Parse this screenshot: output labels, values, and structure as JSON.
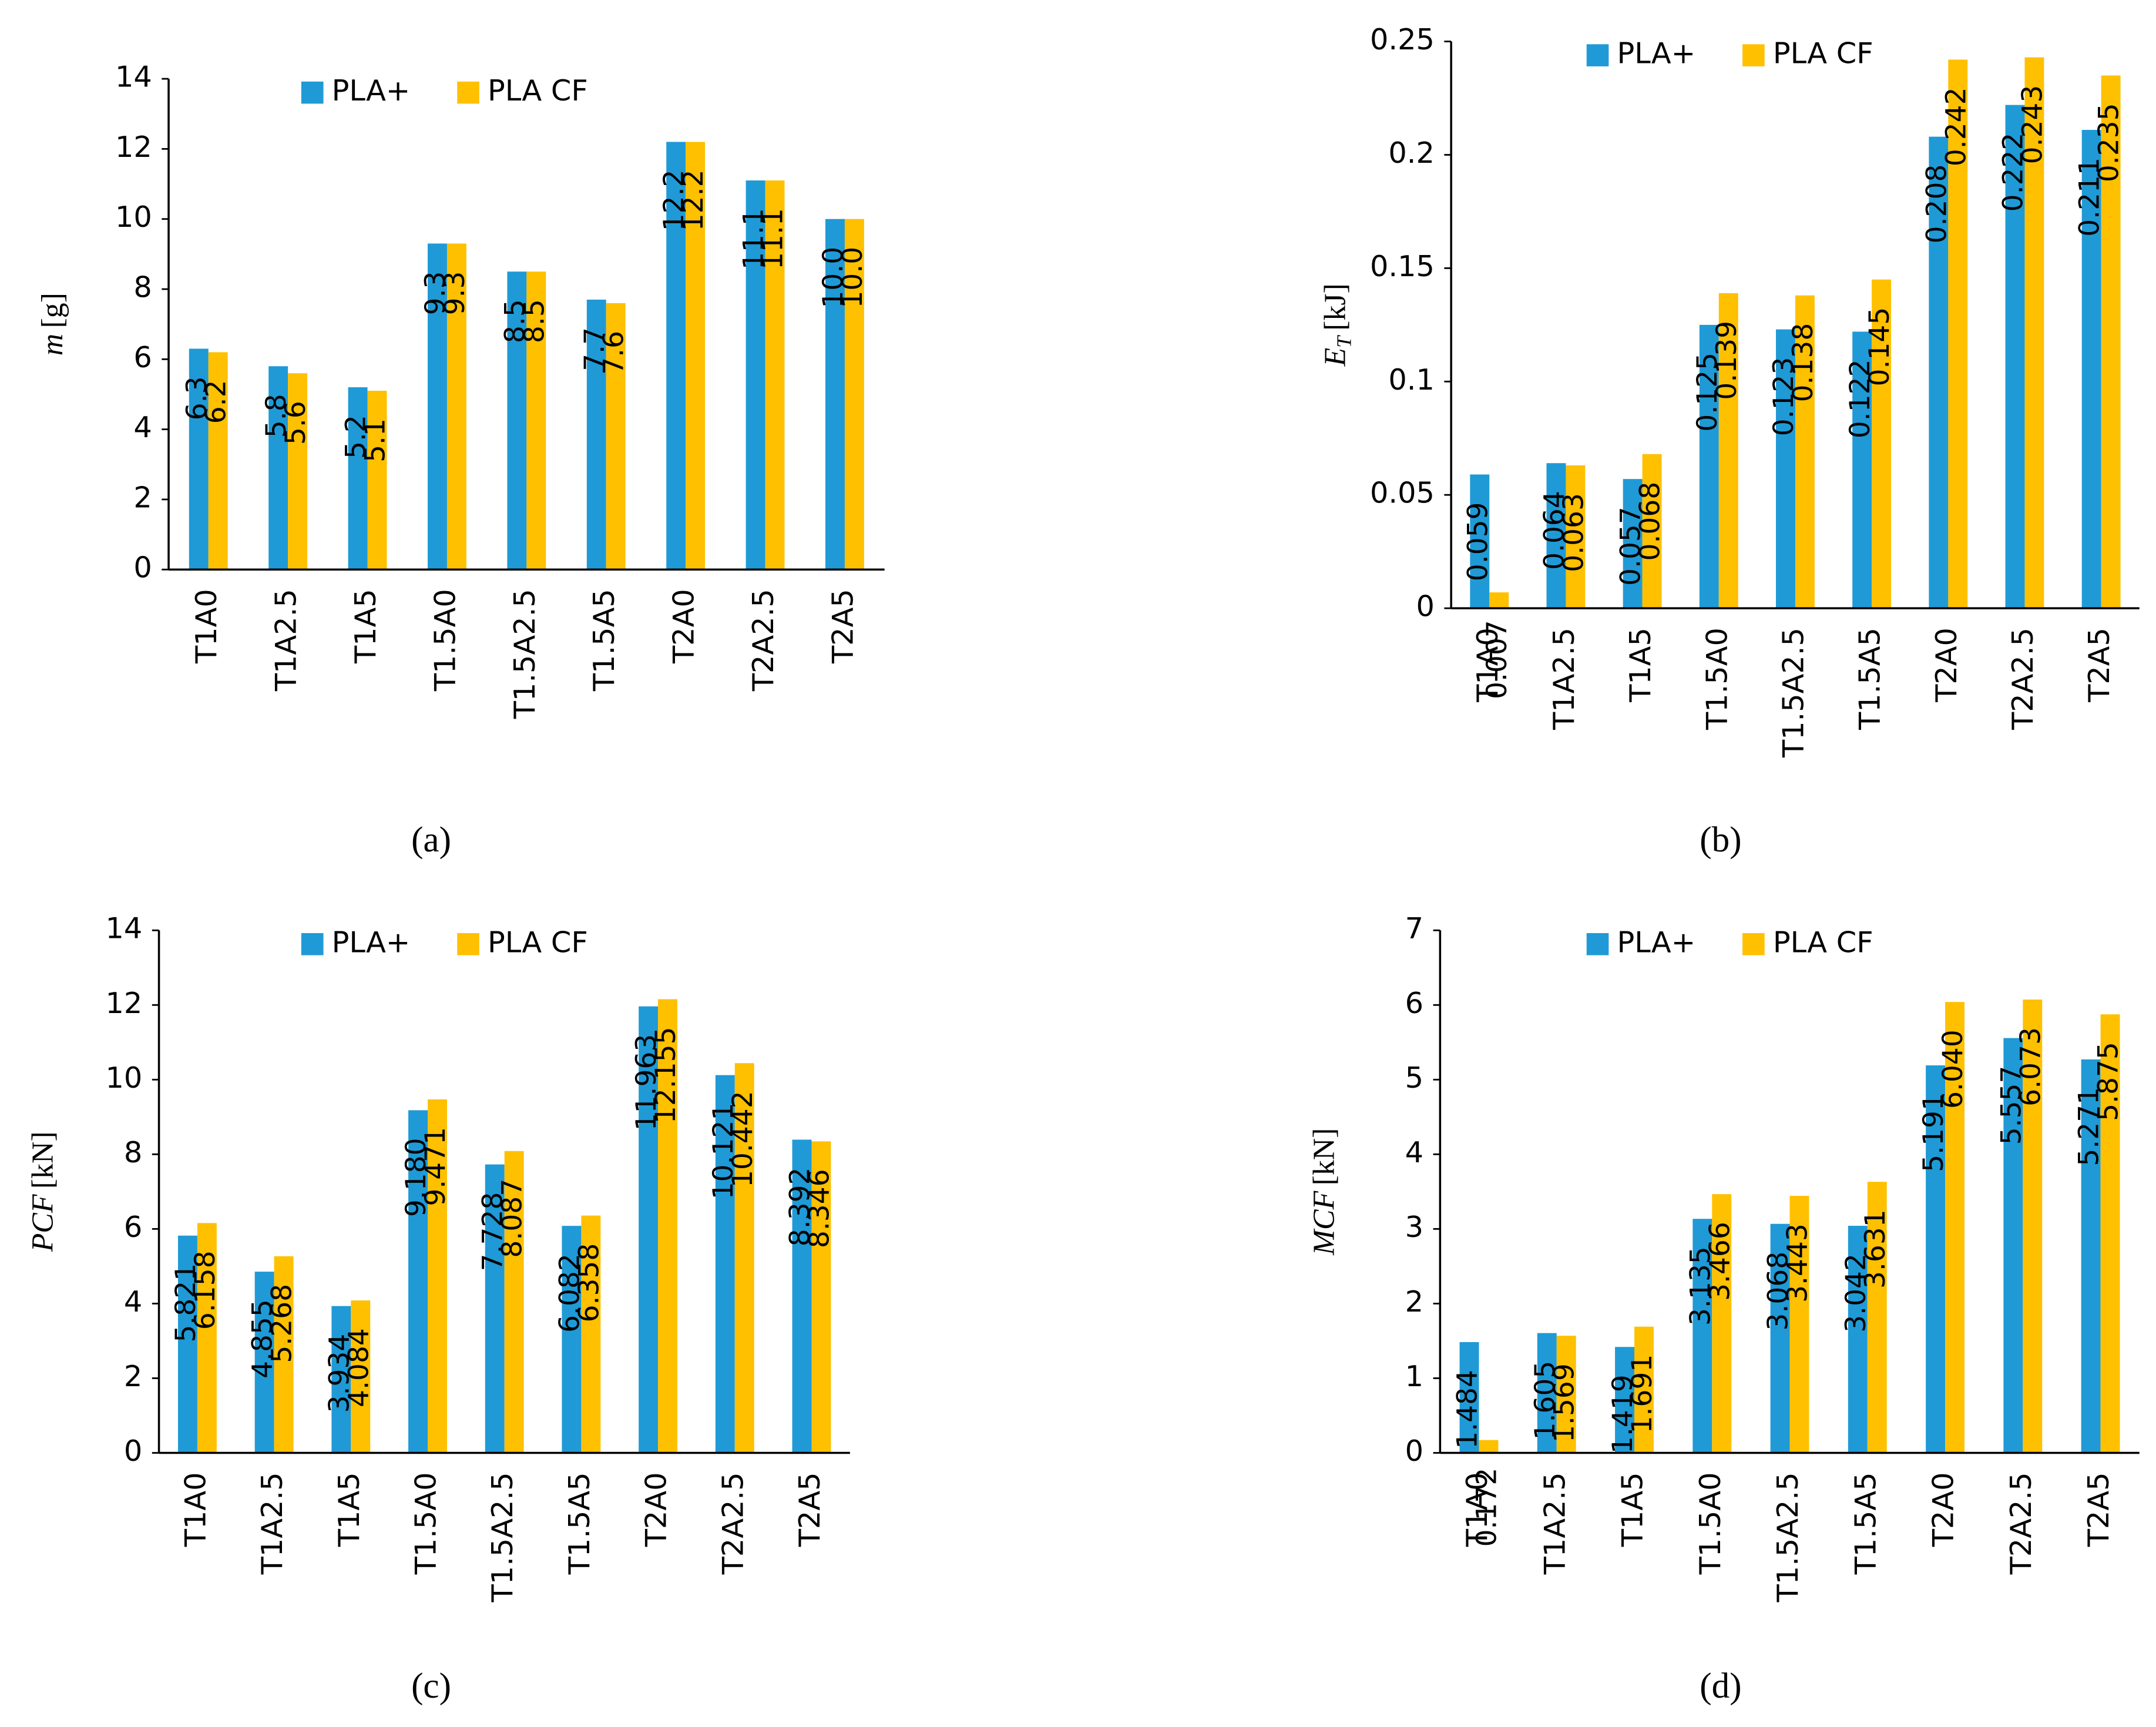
{
  "chart_data": [
    {
      "type": "bar",
      "caption": "(a)",
      "y_label": {
        "symbol": "m",
        "unit": "[g]"
      },
      "categories": [
        "T1A0",
        "T1A2.5",
        "T1A5",
        "T1.5A0",
        "T1.5A2.5",
        "T1.5A5",
        "T2A0",
        "T2A2.5",
        "T2A5"
      ],
      "series": [
        {
          "name": "PLA+",
          "color": "#1f9ad6",
          "values": [
            6.3,
            5.8,
            5.2,
            9.3,
            8.5,
            7.7,
            12.2,
            11.1,
            10.0
          ],
          "value_labels": [
            "6.3",
            "5.8",
            "5.2",
            "9.3",
            "8.5",
            "7.7",
            "12.2",
            "11.1",
            "10.0"
          ]
        },
        {
          "name": "PLA CF",
          "color": "#ffc000",
          "values": [
            6.2,
            5.6,
            5.1,
            9.3,
            8.5,
            7.6,
            12.2,
            11.1,
            10.0
          ],
          "value_labels": [
            "6.2",
            "5.6",
            "5.1",
            "9.3",
            "8.5",
            "7.6",
            "12.2",
            "11.1",
            "10.0"
          ]
        }
      ],
      "ylim": [
        0,
        14
      ],
      "yticks": [
        0,
        2,
        4,
        6,
        8,
        10,
        12,
        14
      ]
    },
    {
      "type": "bar",
      "caption": "(b)",
      "y_label": {
        "symbol": "E",
        "subscript": "T",
        "unit": "[kJ]"
      },
      "categories": [
        "T1A0",
        "T1A2.5",
        "T1A5",
        "T1.5A0",
        "T1.5A2.5",
        "T1.5A5",
        "T2A0",
        "T2A2.5",
        "T2A5"
      ],
      "series": [
        {
          "name": "PLA+",
          "color": "#1f9ad6",
          "values": [
            0.059,
            0.064,
            0.057,
            0.125,
            0.123,
            0.122,
            0.208,
            0.222,
            0.211
          ]
        },
        {
          "name": "PLA CF",
          "color": "#ffc000",
          "values": [
            0.007,
            0.063,
            0.068,
            0.139,
            0.138,
            0.145,
            0.242,
            0.243,
            0.235
          ]
        }
      ],
      "ylim": [
        0,
        0.25
      ],
      "yticks": [
        0,
        0.05,
        0.1,
        0.15,
        0.2,
        0.25
      ]
    },
    {
      "type": "bar",
      "caption": "(c)",
      "y_label": {
        "symbol": "PCF",
        "unit": "[kN]"
      },
      "categories": [
        "T1A0",
        "T1A2.5",
        "T1A5",
        "T1.5A0",
        "T1.5A2.5",
        "T1.5A5",
        "T2A0",
        "T2A2.5",
        "T2A5"
      ],
      "series": [
        {
          "name": "PLA+",
          "color": "#1f9ad6",
          "values": [
            5.821,
            4.855,
            3.934,
            9.18,
            7.728,
            6.082,
            11.963,
            10.121,
            8.392
          ],
          "value_labels": [
            "5.821",
            "4.855",
            "3.934",
            "9.180",
            "7.728",
            "6.082",
            "11.963",
            "10.121",
            "8.392"
          ]
        },
        {
          "name": "PLA CF",
          "color": "#ffc000",
          "values": [
            6.158,
            5.268,
            4.084,
            9.471,
            8.087,
            6.358,
            12.155,
            10.442,
            8.346
          ]
        }
      ],
      "ylim": [
        0,
        14
      ],
      "yticks": [
        0,
        2,
        4,
        6,
        8,
        10,
        12,
        14
      ]
    },
    {
      "type": "bar",
      "caption": "(d)",
      "y_label": {
        "symbol": "MCF",
        "unit": "[kN]"
      },
      "categories": [
        "T1A0",
        "T1A2.5",
        "T1A5",
        "T1.5A0",
        "T1.5A2.5",
        "T1.5A5",
        "T2A0",
        "T2A2.5",
        "T2A5"
      ],
      "series": [
        {
          "name": "PLA+",
          "color": "#1f9ad6",
          "values": [
            1.484,
            1.605,
            1.419,
            3.135,
            3.068,
            3.042,
            5.191,
            5.557,
            5.271
          ]
        },
        {
          "name": "PLA CF",
          "color": "#ffc000",
          "values": [
            0.172,
            1.569,
            1.691,
            3.466,
            3.443,
            3.631,
            6.04,
            6.073,
            5.875
          ],
          "value_labels": [
            "0.172",
            "1.569",
            "1.691",
            "3.466",
            "3.443",
            "3.631",
            "6.040",
            "6.073",
            "5.875"
          ]
        }
      ],
      "ylim": [
        0,
        7
      ],
      "yticks": [
        0,
        1,
        2,
        3,
        4,
        5,
        6,
        7
      ]
    }
  ]
}
